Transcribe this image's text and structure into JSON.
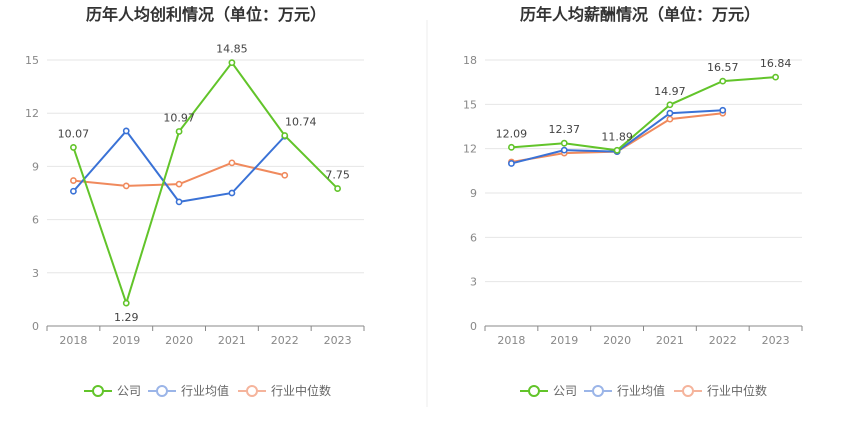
{
  "chart_data": [
    {
      "type": "line",
      "title": "历年人均创利情况（单位：万元）",
      "categories": [
        "2018",
        "2019",
        "2020",
        "2021",
        "2022",
        "2023"
      ],
      "ylim": [
        0,
        15
      ],
      "yticks": [
        0,
        3,
        6,
        9,
        12,
        15
      ],
      "grid": true,
      "legend": "bottom",
      "series": [
        {
          "name": "公司",
          "color": "#62c42a",
          "values": [
            10.07,
            1.29,
            10.97,
            14.85,
            10.74,
            7.75
          ],
          "labels": [
            "10.07",
            "1.29",
            "10.97",
            "14.85",
            "10.74",
            "7.75"
          ]
        },
        {
          "name": "行业均值",
          "color": "#3a72d6",
          "values": [
            7.6,
            11.0,
            7.0,
            7.5,
            10.7,
            null
          ]
        },
        {
          "name": "行业中位数",
          "color": "#f08a5d",
          "values": [
            8.2,
            7.9,
            8.0,
            9.2,
            8.5,
            null
          ]
        }
      ]
    },
    {
      "type": "line",
      "title": "历年人均薪酬情况（单位：万元）",
      "categories": [
        "2018",
        "2019",
        "2020",
        "2021",
        "2022",
        "2023"
      ],
      "ylim": [
        0,
        18
      ],
      "yticks": [
        0,
        3,
        6,
        9,
        12,
        15,
        18
      ],
      "grid": true,
      "legend": "bottom",
      "series": [
        {
          "name": "公司",
          "color": "#62c42a",
          "values": [
            12.09,
            12.37,
            11.89,
            14.97,
            16.57,
            16.84
          ],
          "labels": [
            "12.09",
            "12.37",
            "11.89",
            "14.97",
            "16.57",
            "16.84"
          ]
        },
        {
          "name": "行业均值",
          "color": "#3a72d6",
          "values": [
            11.0,
            11.9,
            11.8,
            14.4,
            14.6,
            null
          ]
        },
        {
          "name": "行业中位数",
          "color": "#f08a5d",
          "values": [
            11.1,
            11.7,
            11.8,
            14.0,
            14.4,
            null
          ]
        }
      ]
    }
  ]
}
